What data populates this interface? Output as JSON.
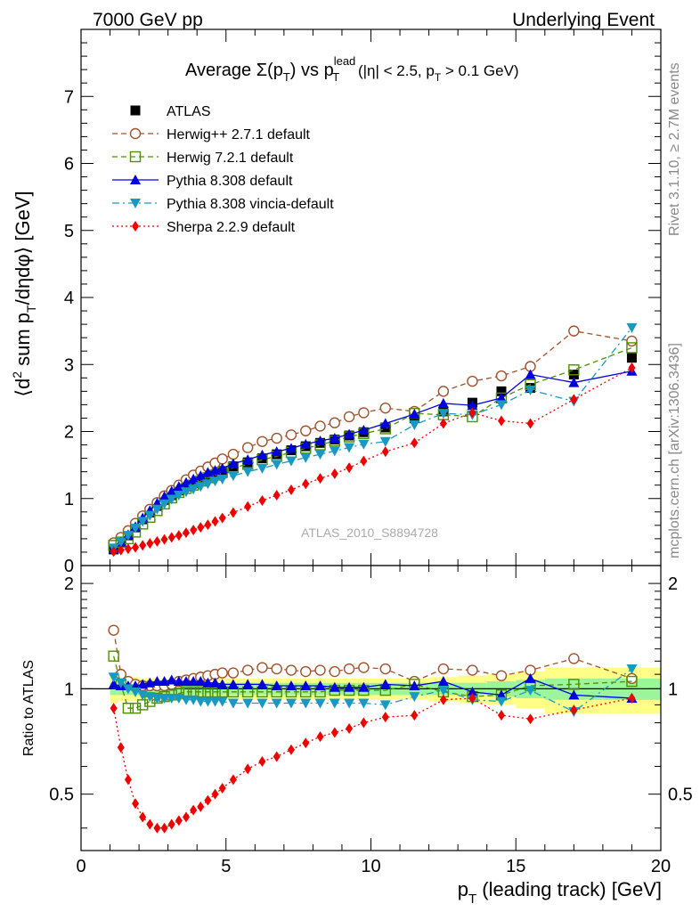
{
  "header": {
    "left": "7000 GeV pp",
    "right": "Underlying Event"
  },
  "side_labels": {
    "rivet": "Rivet 3.1.10, ≥ 2.7M events",
    "mcplots": "mcplots.cern.ch [arXiv:1306.3436]"
  },
  "watermark": "ATLAS_2010_S8894728",
  "colors": {
    "atlas": "#000000",
    "herwigpp": "#a0522d",
    "herwig7": "#4f8f00",
    "pythia": "#0000dd",
    "vincia": "#1899c3",
    "sherpa": "#ee0000",
    "band_inner": "#9cf59c",
    "band_outer": "#ffff88"
  },
  "chart_data": [
    {
      "type": "scatter",
      "title": {
        "main": "Average Σ(p",
        "sub_T": "T",
        "mid": ") vs p",
        "sup_lead": "lead",
        "tail": " (|η| < 2.5, p",
        "tail_sub": "T",
        "end": " > 0.1 GeV)"
      },
      "ylabel": "⟨d² sum p_T/dηdφ⟩ [GeV]",
      "ylabel_parts": {
        "a": "⟨d",
        "sup": "2",
        "b": " sum p",
        "sub": "T",
        "c": "/dηdφ⟩ [GeV]"
      },
      "xlim": [
        0,
        20
      ],
      "ylim": [
        0,
        8
      ],
      "yticks": [
        0,
        1,
        2,
        3,
        4,
        5,
        6,
        7
      ],
      "x": [
        1.125,
        1.375,
        1.625,
        1.875,
        2.125,
        2.375,
        2.625,
        2.875,
        3.125,
        3.375,
        3.625,
        3.875,
        4.125,
        4.375,
        4.625,
        4.875,
        5.25,
        5.75,
        6.25,
        6.75,
        7.25,
        7.75,
        8.25,
        8.75,
        9.25,
        9.75,
        10.5,
        11.5,
        12.5,
        13.5,
        14.5,
        15.5,
        17.0,
        19.0
      ],
      "series": [
        {
          "name": "ATLAS",
          "key": "atlas",
          "marker": "square",
          "line": "none",
          "values": [
            0.24,
            0.34,
            0.45,
            0.57,
            0.69,
            0.79,
            0.89,
            0.98,
            1.05,
            1.12,
            1.18,
            1.23,
            1.28,
            1.33,
            1.37,
            1.41,
            1.48,
            1.54,
            1.6,
            1.66,
            1.72,
            1.78,
            1.83,
            1.88,
            1.94,
            1.99,
            2.06,
            2.2,
            2.3,
            2.43,
            2.6,
            2.65,
            2.85,
            3.1
          ]
        },
        {
          "name": "Herwig++ 2.7.1 default",
          "key": "herwigpp",
          "marker": "open-circle",
          "line": "dashed",
          "values": [
            0.34,
            0.42,
            0.52,
            0.63,
            0.74,
            0.84,
            0.94,
            1.04,
            1.12,
            1.2,
            1.28,
            1.35,
            1.41,
            1.47,
            1.53,
            1.59,
            1.66,
            1.76,
            1.85,
            1.9,
            1.95,
            2.01,
            2.08,
            2.13,
            2.22,
            2.28,
            2.35,
            2.3,
            2.6,
            2.75,
            2.83,
            2.97,
            3.5,
            3.35
          ]
        },
        {
          "name": "Herwig 7.2.1 default",
          "key": "herwig7",
          "marker": "open-square",
          "line": "dashed",
          "values": [
            0.3,
            0.35,
            0.4,
            0.5,
            0.62,
            0.72,
            0.82,
            0.92,
            1.01,
            1.09,
            1.15,
            1.2,
            1.26,
            1.31,
            1.35,
            1.39,
            1.46,
            1.51,
            1.58,
            1.63,
            1.69,
            1.75,
            1.8,
            1.86,
            1.92,
            1.97,
            2.04,
            2.27,
            2.25,
            2.22,
            2.5,
            2.7,
            2.92,
            3.25
          ]
        },
        {
          "name": "Pythia 8.308 default",
          "key": "pythia",
          "marker": "triangle-up",
          "line": "solid",
          "values": [
            0.25,
            0.35,
            0.46,
            0.58,
            0.71,
            0.82,
            0.93,
            1.03,
            1.11,
            1.18,
            1.24,
            1.29,
            1.34,
            1.39,
            1.42,
            1.45,
            1.52,
            1.58,
            1.65,
            1.7,
            1.75,
            1.81,
            1.86,
            1.9,
            1.96,
            2.02,
            2.12,
            2.26,
            2.42,
            2.39,
            2.5,
            2.85,
            2.73,
            2.9
          ]
        },
        {
          "name": "Pythia 8.308 vincia-default",
          "key": "vincia",
          "marker": "triangle-down",
          "line": "dashdot",
          "values": [
            0.26,
            0.35,
            0.45,
            0.56,
            0.66,
            0.75,
            0.84,
            0.92,
            0.99,
            1.05,
            1.1,
            1.14,
            1.18,
            1.22,
            1.26,
            1.29,
            1.34,
            1.4,
            1.45,
            1.51,
            1.56,
            1.61,
            1.66,
            1.71,
            1.76,
            1.81,
            1.85,
            2.1,
            2.27,
            2.25,
            2.4,
            2.62,
            2.45,
            3.55
          ]
        },
        {
          "name": "Sherpa 2.2.9 default",
          "key": "sherpa",
          "marker": "diamond",
          "line": "dotted",
          "values": [
            0.21,
            0.23,
            0.25,
            0.27,
            0.3,
            0.33,
            0.36,
            0.39,
            0.42,
            0.45,
            0.49,
            0.53,
            0.57,
            0.61,
            0.66,
            0.71,
            0.79,
            0.88,
            0.97,
            1.05,
            1.13,
            1.22,
            1.3,
            1.37,
            1.46,
            1.56,
            1.7,
            1.83,
            2.12,
            2.28,
            2.16,
            2.12,
            2.48,
            2.95
          ]
        }
      ]
    },
    {
      "type": "scatter",
      "ylabel": "Ratio to ATLAS",
      "xlabel": "p_T (leading track) [GeV]",
      "xlabel_parts": {
        "a": "p",
        "sub": "T",
        "b": " (leading track) [GeV]"
      },
      "xlim": [
        0,
        20
      ],
      "xticks": [
        0,
        5,
        10,
        15,
        20
      ],
      "ylim_log": [
        0.345,
        2.25
      ],
      "yticks": [
        0.5,
        1,
        2
      ],
      "bands": {
        "edges": [
          1.0,
          1.25,
          1.5,
          1.75,
          2.0,
          2.25,
          2.5,
          2.75,
          3.0,
          3.25,
          3.5,
          3.75,
          4.0,
          4.25,
          4.5,
          4.75,
          5.0,
          5.5,
          6.0,
          6.5,
          7.0,
          7.5,
          8.0,
          8.5,
          9.0,
          9.5,
          10.0,
          11.0,
          12.0,
          13.0,
          14.0,
          15.0,
          16.0,
          18.0,
          20.0
        ],
        "inner": [
          0.04,
          0.04,
          0.04,
          0.04,
          0.04,
          0.04,
          0.04,
          0.04,
          0.04,
          0.04,
          0.04,
          0.04,
          0.04,
          0.04,
          0.04,
          0.04,
          0.04,
          0.04,
          0.04,
          0.04,
          0.04,
          0.04,
          0.04,
          0.04,
          0.04,
          0.04,
          0.04,
          0.04,
          0.04,
          0.04,
          0.05,
          0.06,
          0.07,
          0.07
        ],
        "outer": [
          0.09,
          0.08,
          0.08,
          0.08,
          0.07,
          0.07,
          0.07,
          0.07,
          0.07,
          0.07,
          0.07,
          0.07,
          0.07,
          0.07,
          0.07,
          0.07,
          0.07,
          0.07,
          0.07,
          0.07,
          0.07,
          0.07,
          0.07,
          0.07,
          0.07,
          0.07,
          0.07,
          0.07,
          0.08,
          0.09,
          0.1,
          0.12,
          0.15,
          0.15
        ]
      },
      "series": [
        {
          "name": "Herwig++ 2.7.1 default",
          "key": "herwigpp",
          "marker": "open-circle",
          "line": "dashed",
          "values": [
            1.47,
            1.1,
            1.05,
            1.03,
            1.02,
            1.02,
            1.02,
            1.02,
            1.03,
            1.05,
            1.06,
            1.07,
            1.08,
            1.09,
            1.1,
            1.11,
            1.11,
            1.13,
            1.15,
            1.14,
            1.13,
            1.12,
            1.13,
            1.12,
            1.14,
            1.15,
            1.14,
            1.05,
            1.14,
            1.13,
            1.09,
            1.13,
            1.22,
            1.07
          ]
        },
        {
          "name": "Herwig 7.2.1 default",
          "key": "herwig7",
          "marker": "open-square",
          "line": "dashed",
          "values": [
            1.24,
            1.03,
            0.88,
            0.88,
            0.9,
            0.92,
            0.94,
            0.95,
            0.96,
            0.97,
            0.98,
            0.98,
            0.98,
            0.98,
            0.98,
            0.98,
            0.98,
            0.98,
            0.98,
            0.98,
            0.98,
            0.98,
            0.98,
            0.99,
            0.99,
            0.99,
            0.99,
            1.03,
            0.98,
            0.95,
            0.96,
            1.02,
            1.03,
            1.05
          ]
        },
        {
          "name": "Pythia 8.308 default",
          "key": "pythia",
          "marker": "triangle-up",
          "line": "solid",
          "values": [
            1.03,
            1.02,
            1.02,
            1.02,
            1.03,
            1.04,
            1.05,
            1.05,
            1.06,
            1.05,
            1.05,
            1.05,
            1.05,
            1.04,
            1.04,
            1.03,
            1.03,
            1.03,
            1.03,
            1.02,
            1.02,
            1.02,
            1.02,
            1.01,
            1.01,
            1.01,
            1.03,
            1.02,
            1.05,
            0.98,
            0.96,
            1.07,
            0.96,
            0.94
          ]
        },
        {
          "name": "Pythia 8.308 vincia-default",
          "key": "vincia",
          "marker": "triangle-down",
          "line": "dashdot",
          "values": [
            1.08,
            1.04,
            1.0,
            0.98,
            0.96,
            0.95,
            0.94,
            0.94,
            0.94,
            0.94,
            0.93,
            0.93,
            0.92,
            0.92,
            0.92,
            0.92,
            0.91,
            0.91,
            0.91,
            0.91,
            0.91,
            0.91,
            0.91,
            0.91,
            0.91,
            0.91,
            0.9,
            0.95,
            0.99,
            0.93,
            0.92,
            0.99,
            0.86,
            1.14
          ]
        },
        {
          "name": "Sherpa 2.2.9 default",
          "key": "sherpa",
          "marker": "diamond",
          "line": "dotted",
          "values": [
            0.88,
            0.68,
            0.55,
            0.47,
            0.43,
            0.41,
            0.4,
            0.4,
            0.41,
            0.42,
            0.43,
            0.45,
            0.46,
            0.48,
            0.5,
            0.52,
            0.55,
            0.59,
            0.62,
            0.64,
            0.67,
            0.7,
            0.73,
            0.75,
            0.77,
            0.8,
            0.83,
            0.84,
            0.93,
            0.94,
            0.84,
            0.82,
            0.87,
            0.94
          ]
        }
      ]
    }
  ]
}
